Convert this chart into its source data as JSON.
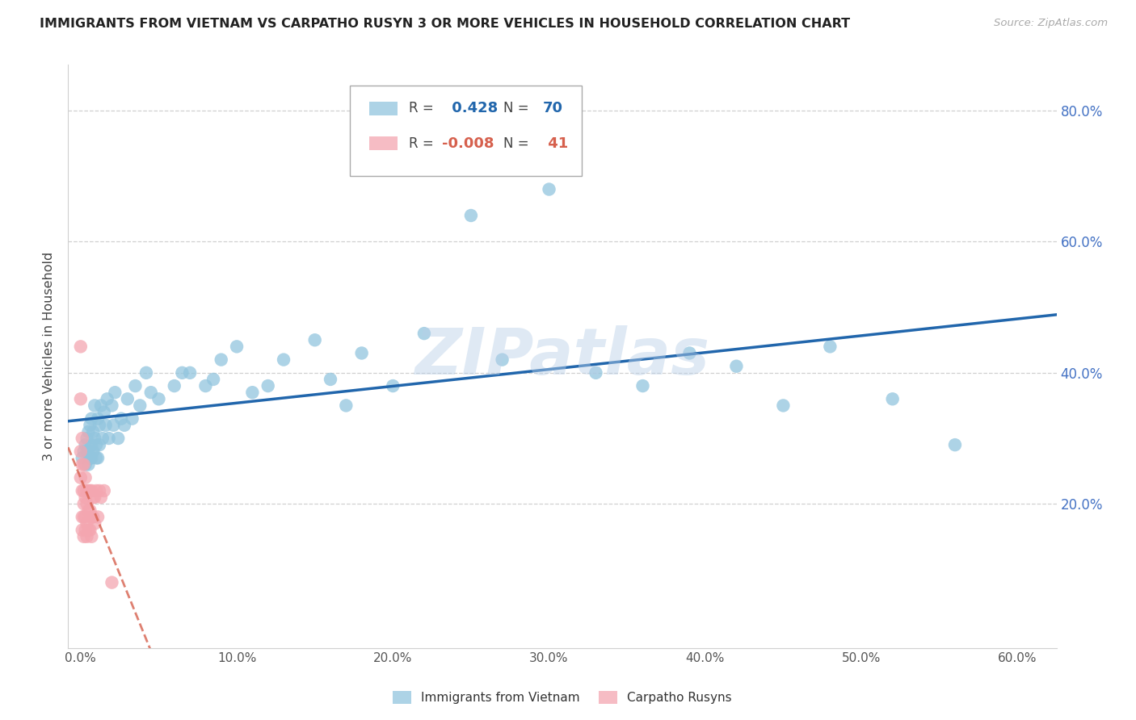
{
  "title": "IMMIGRANTS FROM VIETNAM VS CARPATHO RUSYN 3 OR MORE VEHICLES IN HOUSEHOLD CORRELATION CHART",
  "source": "Source: ZipAtlas.com",
  "ylabel": "3 or more Vehicles in Household",
  "xlabel_ticks": [
    "0.0%",
    "10.0%",
    "20.0%",
    "30.0%",
    "40.0%",
    "50.0%",
    "60.0%"
  ],
  "xlabel_vals": [
    0.0,
    0.1,
    0.2,
    0.3,
    0.4,
    0.5,
    0.6
  ],
  "ylabel_ticks": [
    "20.0%",
    "40.0%",
    "60.0%",
    "80.0%"
  ],
  "ylabel_vals": [
    0.2,
    0.4,
    0.6,
    0.8
  ],
  "xlim": [
    -0.008,
    0.625
  ],
  "ylim": [
    -0.02,
    0.87
  ],
  "R_vietnam": 0.428,
  "N_vietnam": 70,
  "R_carpatho": -0.008,
  "N_carpatho": 41,
  "vietnam_color": "#92c5de",
  "carpatho_color": "#f4a6b0",
  "vietnam_line_color": "#2166ac",
  "carpatho_line_color": "#d6604d",
  "watermark": "ZIPatlas",
  "legend_label_vietnam": "Immigrants from Vietnam",
  "legend_label_carpatho": "Carpatho Rusyns",
  "vietnam_x": [
    0.001,
    0.002,
    0.003,
    0.003,
    0.004,
    0.004,
    0.005,
    0.005,
    0.005,
    0.006,
    0.006,
    0.007,
    0.007,
    0.007,
    0.008,
    0.008,
    0.009,
    0.009,
    0.01,
    0.01,
    0.011,
    0.011,
    0.012,
    0.012,
    0.013,
    0.014,
    0.015,
    0.016,
    0.017,
    0.018,
    0.02,
    0.021,
    0.022,
    0.024,
    0.026,
    0.028,
    0.03,
    0.033,
    0.035,
    0.038,
    0.042,
    0.045,
    0.05,
    0.06,
    0.065,
    0.07,
    0.08,
    0.085,
    0.09,
    0.1,
    0.11,
    0.12,
    0.13,
    0.15,
    0.16,
    0.17,
    0.18,
    0.2,
    0.22,
    0.25,
    0.27,
    0.3,
    0.33,
    0.36,
    0.39,
    0.42,
    0.45,
    0.48,
    0.52,
    0.56
  ],
  "vietnam_y": [
    0.27,
    0.28,
    0.29,
    0.26,
    0.3,
    0.28,
    0.31,
    0.28,
    0.26,
    0.32,
    0.27,
    0.29,
    0.33,
    0.27,
    0.31,
    0.28,
    0.3,
    0.35,
    0.29,
    0.27,
    0.33,
    0.27,
    0.32,
    0.29,
    0.35,
    0.3,
    0.34,
    0.32,
    0.36,
    0.3,
    0.35,
    0.32,
    0.37,
    0.3,
    0.33,
    0.32,
    0.36,
    0.33,
    0.38,
    0.35,
    0.4,
    0.37,
    0.36,
    0.38,
    0.4,
    0.4,
    0.38,
    0.39,
    0.42,
    0.44,
    0.37,
    0.38,
    0.42,
    0.45,
    0.39,
    0.35,
    0.43,
    0.38,
    0.46,
    0.64,
    0.42,
    0.68,
    0.4,
    0.38,
    0.43,
    0.41,
    0.35,
    0.44,
    0.36,
    0.29
  ],
  "carpatho_x": [
    0.0,
    0.0,
    0.0,
    0.0,
    0.001,
    0.001,
    0.001,
    0.001,
    0.001,
    0.002,
    0.002,
    0.002,
    0.002,
    0.002,
    0.003,
    0.003,
    0.003,
    0.003,
    0.004,
    0.004,
    0.004,
    0.004,
    0.005,
    0.005,
    0.005,
    0.006,
    0.006,
    0.006,
    0.007,
    0.007,
    0.007,
    0.008,
    0.008,
    0.009,
    0.009,
    0.01,
    0.011,
    0.012,
    0.013,
    0.015,
    0.02
  ],
  "carpatho_y": [
    0.44,
    0.36,
    0.28,
    0.24,
    0.3,
    0.26,
    0.22,
    0.18,
    0.16,
    0.26,
    0.22,
    0.2,
    0.18,
    0.15,
    0.24,
    0.21,
    0.18,
    0.16,
    0.22,
    0.2,
    0.17,
    0.15,
    0.22,
    0.19,
    0.16,
    0.22,
    0.19,
    0.16,
    0.22,
    0.18,
    0.15,
    0.21,
    0.18,
    0.21,
    0.17,
    0.22,
    0.18,
    0.22,
    0.21,
    0.22,
    0.08
  ],
  "grid_color": "#d0d0d0",
  "spine_color": "#d0d0d0",
  "right_tick_color": "#4472c4"
}
